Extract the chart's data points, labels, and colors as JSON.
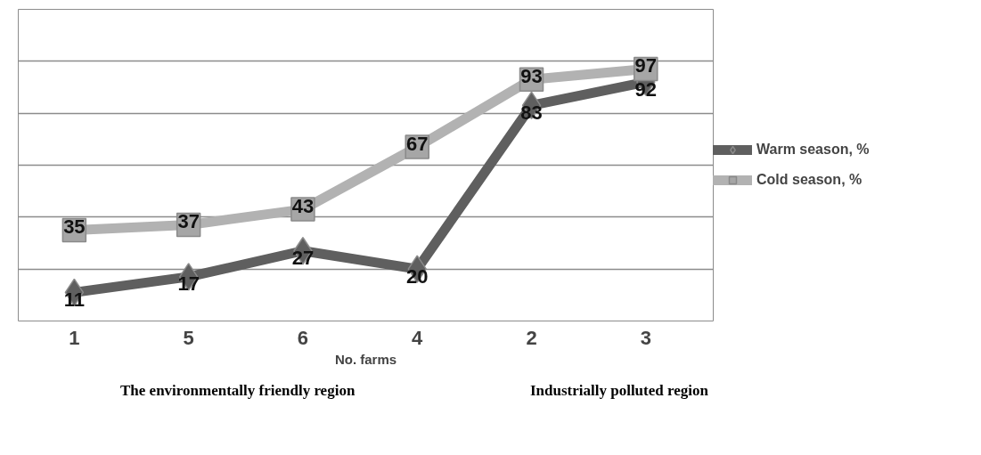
{
  "chart_data": {
    "type": "line",
    "xlabel": "No. farms",
    "categories": [
      "1",
      "5",
      "6",
      "4",
      "2",
      "3"
    ],
    "series": [
      {
        "name": "Warm season, %",
        "color": "#5f5f5f",
        "values": [
          11,
          17,
          27,
          20,
          83,
          92
        ],
        "marker": "diamond"
      },
      {
        "name": "Cold season, %",
        "color": "#b2b2b2",
        "values": [
          35,
          37,
          43,
          67,
          93,
          97
        ],
        "marker": "square"
      }
    ],
    "ylim": [
      0,
      120
    ],
    "yticks": [
      {
        "value": 0,
        "label": null
      },
      {
        "value": 20,
        "label": null
      },
      {
        "value": 40,
        "label": null
      },
      {
        "value": 60,
        "label": null
      },
      {
        "value": 80,
        "label": null
      },
      {
        "value": 100,
        "label": null
      }
    ],
    "tick_labels": "x",
    "grid": "y",
    "legend": "right",
    "data_labels": true,
    "line_style": "solid",
    "annotations": [
      "The environmentally friendly region",
      "Industrially polluted region"
    ]
  }
}
